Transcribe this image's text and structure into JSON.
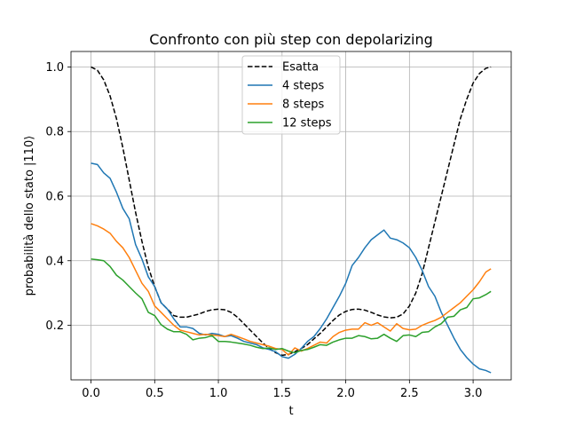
{
  "chart_data": {
    "type": "line",
    "title": "Confronto con più step con depolarizing",
    "xlabel": "t",
    "ylabel": "probabilità dello stato |110⟩",
    "xlim": [
      -0.157,
      3.299
    ],
    "ylim": [
      0.031,
      1.048
    ],
    "xticks": [
      0.0,
      0.5,
      1.0,
      1.5,
      2.0,
      2.5,
      3.0
    ],
    "xtick_labels": [
      "0.0",
      "0.5",
      "1.0",
      "1.5",
      "2.0",
      "2.5",
      "3.0"
    ],
    "yticks": [
      0.2,
      0.4,
      0.6,
      0.8,
      1.0
    ],
    "ytick_labels": [
      "0.2",
      "0.4",
      "0.6",
      "0.8",
      "1.0"
    ],
    "grid": true,
    "legend_position": "top-center",
    "series": [
      {
        "name": "Esatta",
        "color": "#000000",
        "dashed": true,
        "x": [
          0.0,
          0.05,
          0.1,
          0.15,
          0.2,
          0.25,
          0.3,
          0.35,
          0.4,
          0.45,
          0.5,
          0.55,
          0.6,
          0.65,
          0.7,
          0.75,
          0.8,
          0.85,
          0.9,
          0.95,
          1.0,
          1.05,
          1.1,
          1.15,
          1.2,
          1.25,
          1.3,
          1.35,
          1.4,
          1.45,
          1.5,
          1.55,
          1.6,
          1.65,
          1.7,
          1.75,
          1.8,
          1.85,
          1.9,
          1.95,
          2.0,
          2.05,
          2.1,
          2.15,
          2.2,
          2.25,
          2.3,
          2.35,
          2.4,
          2.45,
          2.5,
          2.55,
          2.6,
          2.65,
          2.7,
          2.75,
          2.8,
          2.85,
          2.9,
          2.95,
          3.0,
          3.05,
          3.1,
          3.14
        ],
        "values": [
          1.0,
          0.99,
          0.96,
          0.91,
          0.84,
          0.75,
          0.65,
          0.55,
          0.46,
          0.38,
          0.32,
          0.27,
          0.25,
          0.23,
          0.225,
          0.225,
          0.23,
          0.235,
          0.243,
          0.248,
          0.25,
          0.248,
          0.24,
          0.225,
          0.205,
          0.185,
          0.165,
          0.145,
          0.128,
          0.115,
          0.107,
          0.11,
          0.118,
          0.128,
          0.14,
          0.158,
          0.175,
          0.195,
          0.215,
          0.232,
          0.243,
          0.249,
          0.25,
          0.247,
          0.24,
          0.232,
          0.226,
          0.223,
          0.225,
          0.235,
          0.26,
          0.3,
          0.36,
          0.44,
          0.52,
          0.6,
          0.68,
          0.76,
          0.84,
          0.9,
          0.95,
          0.98,
          0.996,
          1.0
        ]
      },
      {
        "name": "4 steps",
        "color": "#1f77b4",
        "dashed": false,
        "x": [
          0.0,
          0.05,
          0.1,
          0.15,
          0.2,
          0.25,
          0.3,
          0.35,
          0.4,
          0.45,
          0.5,
          0.55,
          0.6,
          0.65,
          0.7,
          0.75,
          0.8,
          0.85,
          0.9,
          0.95,
          1.0,
          1.05,
          1.1,
          1.15,
          1.2,
          1.25,
          1.3,
          1.35,
          1.4,
          1.45,
          1.5,
          1.55,
          1.6,
          1.65,
          1.7,
          1.75,
          1.8,
          1.85,
          1.9,
          1.95,
          2.0,
          2.05,
          2.1,
          2.15,
          2.2,
          2.25,
          2.3,
          2.35,
          2.4,
          2.45,
          2.5,
          2.55,
          2.6,
          2.65,
          2.7,
          2.75,
          2.8,
          2.85,
          2.9,
          2.95,
          3.0,
          3.05,
          3.1,
          3.14
        ],
        "values": [
          0.702,
          0.698,
          0.672,
          0.655,
          0.612,
          0.562,
          0.53,
          0.45,
          0.405,
          0.35,
          0.32,
          0.27,
          0.25,
          0.22,
          0.195,
          0.195,
          0.19,
          0.175,
          0.17,
          0.175,
          0.172,
          0.165,
          0.168,
          0.16,
          0.15,
          0.145,
          0.14,
          0.13,
          0.125,
          0.118,
          0.103,
          0.098,
          0.11,
          0.128,
          0.15,
          0.165,
          0.19,
          0.22,
          0.255,
          0.29,
          0.33,
          0.385,
          0.41,
          0.44,
          0.465,
          0.48,
          0.495,
          0.47,
          0.465,
          0.455,
          0.44,
          0.41,
          0.37,
          0.32,
          0.29,
          0.24,
          0.2,
          0.16,
          0.125,
          0.1,
          0.08,
          0.065,
          0.06,
          0.053
        ]
      },
      {
        "name": "8 steps",
        "color": "#ff7f0e",
        "dashed": false,
        "x": [
          0.0,
          0.05,
          0.1,
          0.15,
          0.2,
          0.25,
          0.3,
          0.35,
          0.4,
          0.45,
          0.5,
          0.55,
          0.6,
          0.65,
          0.7,
          0.75,
          0.8,
          0.85,
          0.9,
          0.95,
          1.0,
          1.05,
          1.1,
          1.15,
          1.2,
          1.25,
          1.3,
          1.35,
          1.4,
          1.45,
          1.5,
          1.55,
          1.6,
          1.65,
          1.7,
          1.75,
          1.8,
          1.85,
          1.9,
          1.95,
          2.0,
          2.05,
          2.1,
          2.15,
          2.2,
          2.25,
          2.3,
          2.35,
          2.4,
          2.45,
          2.5,
          2.55,
          2.6,
          2.65,
          2.7,
          2.75,
          2.8,
          2.85,
          2.9,
          2.95,
          3.0,
          3.05,
          3.1,
          3.14
        ],
        "values": [
          0.515,
          0.508,
          0.498,
          0.485,
          0.46,
          0.44,
          0.41,
          0.37,
          0.33,
          0.305,
          0.26,
          0.24,
          0.22,
          0.2,
          0.185,
          0.18,
          0.175,
          0.17,
          0.172,
          0.17,
          0.168,
          0.165,
          0.172,
          0.165,
          0.158,
          0.15,
          0.145,
          0.14,
          0.135,
          0.128,
          0.125,
          0.108,
          0.13,
          0.12,
          0.128,
          0.138,
          0.148,
          0.145,
          0.165,
          0.178,
          0.185,
          0.188,
          0.188,
          0.208,
          0.2,
          0.208,
          0.195,
          0.182,
          0.205,
          0.19,
          0.186,
          0.188,
          0.2,
          0.208,
          0.215,
          0.225,
          0.24,
          0.255,
          0.27,
          0.29,
          0.31,
          0.335,
          0.365,
          0.375
        ]
      },
      {
        "name": "12 steps",
        "color": "#2ca02c",
        "dashed": false,
        "x": [
          0.0,
          0.05,
          0.1,
          0.15,
          0.2,
          0.25,
          0.3,
          0.35,
          0.4,
          0.45,
          0.5,
          0.55,
          0.6,
          0.65,
          0.7,
          0.75,
          0.8,
          0.85,
          0.9,
          0.95,
          1.0,
          1.05,
          1.1,
          1.15,
          1.2,
          1.25,
          1.3,
          1.35,
          1.4,
          1.45,
          1.5,
          1.55,
          1.6,
          1.65,
          1.7,
          1.75,
          1.8,
          1.85,
          1.9,
          1.95,
          2.0,
          2.05,
          2.1,
          2.15,
          2.2,
          2.25,
          2.3,
          2.35,
          2.4,
          2.45,
          2.5,
          2.55,
          2.6,
          2.65,
          2.7,
          2.75,
          2.8,
          2.85,
          2.9,
          2.95,
          3.0,
          3.05,
          3.1,
          3.14
        ],
        "values": [
          0.405,
          0.403,
          0.4,
          0.382,
          0.355,
          0.34,
          0.32,
          0.3,
          0.282,
          0.24,
          0.23,
          0.202,
          0.188,
          0.18,
          0.18,
          0.172,
          0.155,
          0.16,
          0.162,
          0.168,
          0.15,
          0.15,
          0.148,
          0.145,
          0.142,
          0.138,
          0.132,
          0.128,
          0.13,
          0.125,
          0.128,
          0.12,
          0.115,
          0.122,
          0.125,
          0.132,
          0.14,
          0.138,
          0.148,
          0.155,
          0.16,
          0.16,
          0.168,
          0.165,
          0.158,
          0.16,
          0.172,
          0.16,
          0.15,
          0.168,
          0.17,
          0.165,
          0.178,
          0.18,
          0.195,
          0.205,
          0.225,
          0.228,
          0.248,
          0.255,
          0.282,
          0.285,
          0.295,
          0.305
        ]
      }
    ]
  }
}
